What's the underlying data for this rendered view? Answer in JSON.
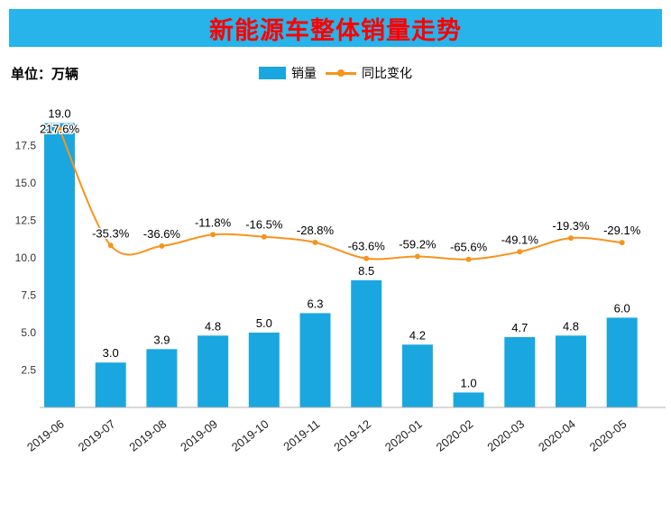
{
  "title": "新能源车整体销量走势",
  "unit_label": "单位：万辆",
  "legend": {
    "sales_label": "销量",
    "yoy_label": "同比变化"
  },
  "colors": {
    "bar": "#1aa7e0",
    "line": "#f7941d",
    "title_bg": "#26b4ea",
    "title_text": "#fe0000",
    "label": "#000000",
    "axis": "#b0b0b0"
  },
  "chart_data": {
    "type": "bar",
    "title": "新能源车整体销量走势",
    "xlabel": "",
    "ylabel": "单位：万辆",
    "categories": [
      "2019-06",
      "2019-07",
      "2019-08",
      "2019-09",
      "2019-10",
      "2019-11",
      "2019-12",
      "2020-01",
      "2020-02",
      "2020-03",
      "2020-04",
      "2020-05"
    ],
    "series": [
      {
        "name": "销量",
        "type": "bar",
        "unit": "万辆",
        "values": [
          19.0,
          3.0,
          3.9,
          4.8,
          5.0,
          6.3,
          8.5,
          4.2,
          1.0,
          4.7,
          4.8,
          6.0
        ]
      },
      {
        "name": "同比变化",
        "type": "line",
        "unit": "%",
        "values": [
          217.6,
          -35.3,
          -36.6,
          -11.8,
          -16.5,
          -28.8,
          -63.6,
          -59.2,
          -65.6,
          -49.1,
          -19.3,
          -29.1
        ]
      }
    ],
    "yticks": [
      2.5,
      5.0,
      7.5,
      10.0,
      12.5,
      15.0,
      17.5
    ],
    "ylim": [
      0,
      19.5
    ],
    "grid": false,
    "legend_position": "top"
  }
}
